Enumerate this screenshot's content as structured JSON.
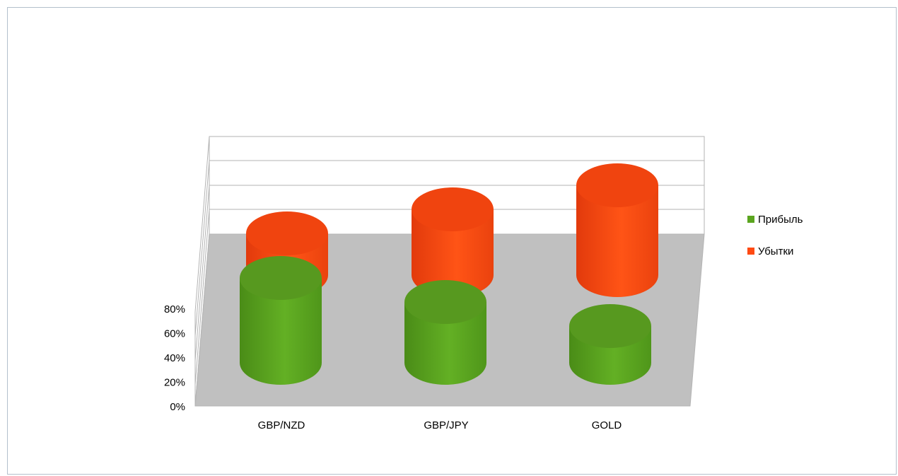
{
  "chart_data": {
    "type": "bar",
    "bar_shape": "cylinder",
    "stacked": true,
    "three_d": true,
    "categories": [
      "GBP/NZD",
      "GBP/JPY",
      "GOLD"
    ],
    "series": [
      {
        "name": "Прибыль",
        "color": "#5ba51f",
        "values": [
          80,
          60,
          40
        ]
      },
      {
        "name": "Убытки",
        "color": "#ff4a12",
        "values": [
          20,
          40,
          60
        ]
      }
    ],
    "y_ticks": [
      "0%",
      "20%",
      "40%",
      "60%",
      "80%"
    ],
    "ylim": [
      0,
      100
    ],
    "legend_position": "right",
    "title": "",
    "xlabel": "",
    "ylabel": ""
  }
}
